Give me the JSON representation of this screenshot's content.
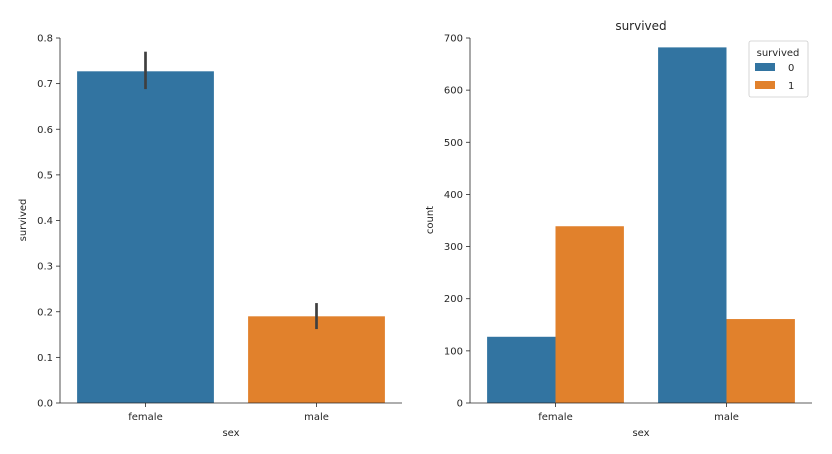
{
  "chart_data": [
    {
      "type": "bar",
      "title": "",
      "xlabel": "sex",
      "ylabel": "survived",
      "categories": [
        "female",
        "male"
      ],
      "values": [
        0.727,
        0.19
      ],
      "error_bars": [
        [
          0.688,
          0.77
        ],
        [
          0.162,
          0.219
        ]
      ],
      "bar_colors": [
        "#3274a1",
        "#e1812c"
      ],
      "error_color": "#3f3f3f",
      "ylim": [
        0,
        0.8
      ],
      "yticks": [
        0.0,
        0.1,
        0.2,
        0.3,
        0.4,
        0.5,
        0.6,
        0.7,
        0.8
      ],
      "ytick_labels": [
        "0.0",
        "0.1",
        "0.2",
        "0.3",
        "0.4",
        "0.5",
        "0.6",
        "0.7",
        "0.8"
      ],
      "grid": false
    },
    {
      "type": "bar",
      "title": "survived",
      "xlabel": "sex",
      "ylabel": "count",
      "categories": [
        "female",
        "male"
      ],
      "series": [
        {
          "name": "0",
          "values": [
            127,
            682
          ],
          "color": "#3274a1"
        },
        {
          "name": "1",
          "values": [
            339,
            161
          ],
          "color": "#e1812c"
        }
      ],
      "ylim": [
        0,
        700
      ],
      "yticks": [
        0,
        100,
        200,
        300,
        400,
        500,
        600,
        700
      ],
      "ytick_labels": [
        "0",
        "100",
        "200",
        "300",
        "400",
        "500",
        "600",
        "700"
      ],
      "legend": {
        "title": "survived",
        "placement": "top-right"
      },
      "grid": false
    }
  ]
}
